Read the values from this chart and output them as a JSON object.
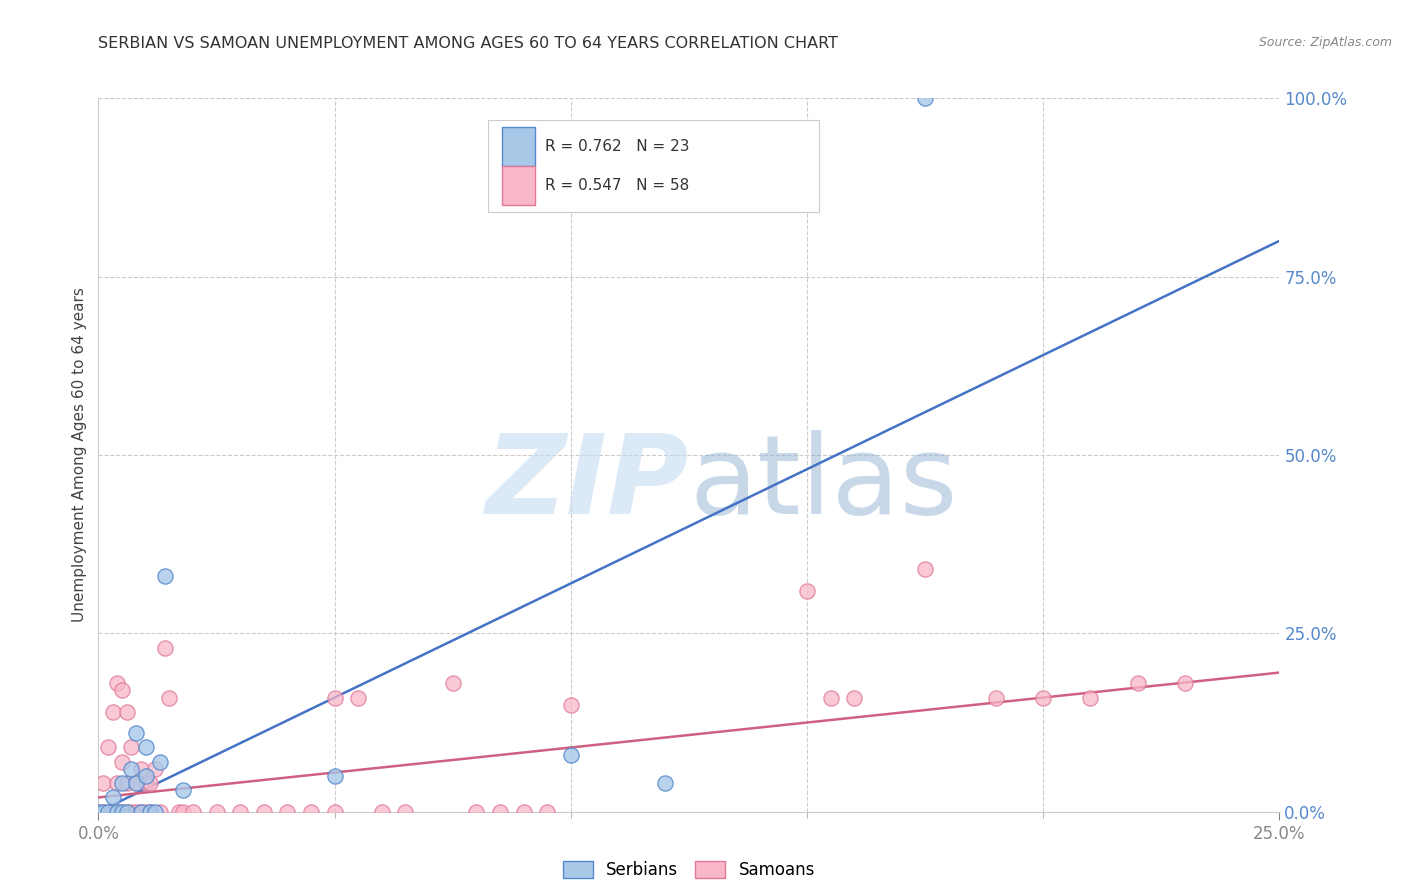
{
  "title": "SERBIAN VS SAMOAN UNEMPLOYMENT AMONG AGES 60 TO 64 YEARS CORRELATION CHART",
  "source": "Source: ZipAtlas.com",
  "ylabel": "Unemployment Among Ages 60 to 64 years",
  "xlim": [
    0.0,
    0.25
  ],
  "ylim": [
    0.0,
    1.0
  ],
  "ytick_vals": [
    0.0,
    0.25,
    0.5,
    0.75,
    1.0
  ],
  "ytick_labels": [
    "0.0%",
    "25.0%",
    "50.0%",
    "75.0%",
    "100.0%"
  ],
  "xtick_labels": [
    "0.0%",
    "25.0%"
  ],
  "legend_items": [
    {
      "label": "R = 0.762   N = 23",
      "color": "#a8c8e8"
    },
    {
      "label": "R = 0.547   N = 58",
      "color": "#f8b8c8"
    }
  ],
  "legend_bottom": [
    "Serbians",
    "Samoans"
  ],
  "serbian_color": "#a8c8e8",
  "samoan_color": "#f8b8c8",
  "serbian_edge_color": "#5588cc",
  "samoan_edge_color": "#e07898",
  "serbian_line_color": "#4472c4",
  "samoan_line_color": "#d06080",
  "ytick_color": "#5588cc",
  "xtick_color": "#888888",
  "serbian_points": [
    [
      0.0,
      0.0
    ],
    [
      0.001,
      0.0
    ],
    [
      0.002,
      0.0
    ],
    [
      0.003,
      0.02
    ],
    [
      0.004,
      0.0
    ],
    [
      0.005,
      0.0
    ],
    [
      0.005,
      0.04
    ],
    [
      0.006,
      0.0
    ],
    [
      0.007,
      0.06
    ],
    [
      0.008,
      0.04
    ],
    [
      0.008,
      0.11
    ],
    [
      0.009,
      0.0
    ],
    [
      0.01,
      0.09
    ],
    [
      0.01,
      0.05
    ],
    [
      0.011,
      0.0
    ],
    [
      0.012,
      0.0
    ],
    [
      0.013,
      0.07
    ],
    [
      0.014,
      0.33
    ],
    [
      0.018,
      0.03
    ],
    [
      0.05,
      0.05
    ],
    [
      0.1,
      0.08
    ],
    [
      0.175,
      1.0
    ],
    [
      0.12,
      0.04
    ]
  ],
  "samoan_points": [
    [
      0.0,
      0.0
    ],
    [
      0.001,
      0.0
    ],
    [
      0.001,
      0.04
    ],
    [
      0.002,
      0.0
    ],
    [
      0.002,
      0.09
    ],
    [
      0.003,
      0.0
    ],
    [
      0.003,
      0.14
    ],
    [
      0.004,
      0.0
    ],
    [
      0.004,
      0.04
    ],
    [
      0.004,
      0.18
    ],
    [
      0.005,
      0.0
    ],
    [
      0.005,
      0.07
    ],
    [
      0.005,
      0.17
    ],
    [
      0.006,
      0.0
    ],
    [
      0.006,
      0.04
    ],
    [
      0.006,
      0.14
    ],
    [
      0.007,
      0.0
    ],
    [
      0.007,
      0.09
    ],
    [
      0.008,
      0.0
    ],
    [
      0.008,
      0.04
    ],
    [
      0.009,
      0.0
    ],
    [
      0.009,
      0.06
    ],
    [
      0.01,
      0.0
    ],
    [
      0.01,
      0.04
    ],
    [
      0.011,
      0.0
    ],
    [
      0.011,
      0.04
    ],
    [
      0.012,
      0.06
    ],
    [
      0.013,
      0.0
    ],
    [
      0.014,
      0.23
    ],
    [
      0.015,
      0.16
    ],
    [
      0.017,
      0.0
    ],
    [
      0.018,
      0.0
    ],
    [
      0.02,
      0.0
    ],
    [
      0.025,
      0.0
    ],
    [
      0.03,
      0.0
    ],
    [
      0.035,
      0.0
    ],
    [
      0.04,
      0.0
    ],
    [
      0.045,
      0.0
    ],
    [
      0.05,
      0.0
    ],
    [
      0.05,
      0.16
    ],
    [
      0.055,
      0.16
    ],
    [
      0.06,
      0.0
    ],
    [
      0.065,
      0.0
    ],
    [
      0.075,
      0.18
    ],
    [
      0.08,
      0.0
    ],
    [
      0.085,
      0.0
    ],
    [
      0.09,
      0.0
    ],
    [
      0.095,
      0.0
    ],
    [
      0.1,
      0.15
    ],
    [
      0.15,
      0.31
    ],
    [
      0.155,
      0.16
    ],
    [
      0.16,
      0.16
    ],
    [
      0.175,
      0.34
    ],
    [
      0.19,
      0.16
    ],
    [
      0.2,
      0.16
    ],
    [
      0.21,
      0.16
    ],
    [
      0.22,
      0.18
    ],
    [
      0.23,
      0.18
    ]
  ],
  "serbian_line": {
    "x0": 0.0,
    "y0": 0.0,
    "x1": 0.25,
    "y1": 0.8
  },
  "samoan_line": {
    "x0": 0.0,
    "y0": 0.02,
    "x1": 0.25,
    "y1": 0.195
  },
  "background_color": "#ffffff",
  "grid_color": "#cccccc",
  "title_color": "#333333",
  "axis_label_color": "#444444"
}
